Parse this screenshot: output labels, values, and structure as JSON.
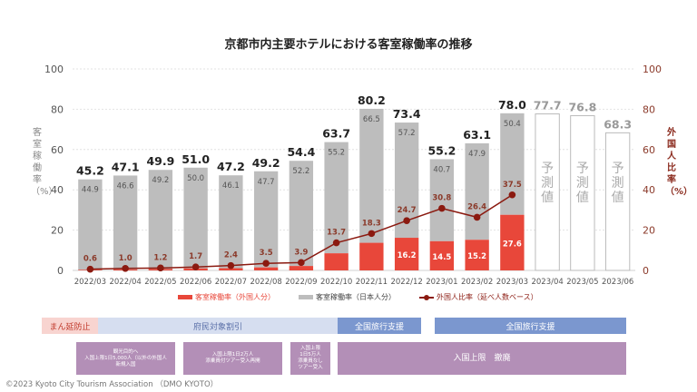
{
  "chart_data": {
    "type": "bar",
    "title": "京都市内主要ホテルにおける客室稼働率の推移",
    "ylabel": "客室稼働率（%）",
    "y2label": "外国人比率（%）",
    "ylim": [
      0,
      100
    ],
    "y2lim": [
      0,
      100
    ],
    "yticks": [
      "0",
      "20",
      "40",
      "60",
      "80",
      "100"
    ],
    "y2ticks": [
      "0",
      "20",
      "40",
      "60",
      "80",
      "100"
    ],
    "grid": true,
    "legend_position": "bottom",
    "categories": [
      "2022/03",
      "2022/04",
      "2022/05",
      "2022/06",
      "2022/07",
      "2022/08",
      "2022/09",
      "2022/10",
      "2022/11",
      "2022/12",
      "2023/01",
      "2023/02",
      "2023/03",
      "2023/04",
      "2023/05",
      "2023/06"
    ],
    "series": [
      {
        "name": "客室稼働率（外国人分）",
        "type": "stacked-bar",
        "color": "#e8473a",
        "values": [
          0.3,
          0.5,
          0.7,
          1.0,
          1.1,
          1.5,
          2.2,
          8.5,
          13.7,
          16.2,
          14.5,
          15.2,
          27.6,
          null,
          null,
          null
        ],
        "labels": [
          null,
          null,
          null,
          null,
          null,
          null,
          null,
          null,
          null,
          "16.2",
          "14.5",
          "15.2",
          "27.6",
          null,
          null,
          null
        ]
      },
      {
        "name": "客室稼働率（日本人分）",
        "type": "stacked-bar",
        "color": "#bdbdbd",
        "values": [
          44.9,
          46.6,
          49.2,
          50.0,
          46.1,
          47.7,
          52.2,
          55.2,
          66.5,
          57.2,
          40.7,
          47.9,
          50.4,
          null,
          null,
          null
        ],
        "labels": [
          "44.9",
          "46.6",
          "49.2",
          "50.0",
          "46.1",
          "47.7",
          "52.2",
          "55.2",
          "66.5",
          "57.2",
          "40.7",
          "47.9",
          "50.4",
          null,
          null,
          null
        ]
      },
      {
        "name": "外国人比率（延べ人数ベース）",
        "type": "line",
        "axis": "right",
        "color": "#8b1a10",
        "values": [
          0.6,
          1.0,
          1.2,
          1.7,
          2.4,
          3.5,
          3.9,
          13.7,
          18.3,
          24.7,
          30.8,
          26.4,
          37.5,
          null,
          null,
          null
        ],
        "labels": [
          "0.6",
          "1.0",
          "1.2",
          "1.7",
          "2.4",
          "3.5",
          "3.9",
          "13.7",
          "18.3",
          "24.7",
          "30.8",
          "26.4",
          "37.5",
          null,
          null,
          null
        ]
      }
    ],
    "totals": [
      45.2,
      47.1,
      49.9,
      51.0,
      47.2,
      49.2,
      54.4,
      63.7,
      80.2,
      73.4,
      55.2,
      63.1,
      78.0,
      77.7,
      76.8,
      68.3
    ],
    "total_labels": [
      "45.2",
      "47.1",
      "49.9",
      "51.0",
      "47.2",
      "49.2",
      "54.4",
      "63.7",
      "80.2",
      "73.4",
      "55.2",
      "63.1",
      "78.0",
      "77.7",
      "76.8",
      "68.3"
    ],
    "forecast": [
      false,
      false,
      false,
      false,
      false,
      false,
      false,
      false,
      false,
      false,
      false,
      false,
      false,
      true,
      true,
      true
    ],
    "forecast_label": "予測値"
  },
  "legend": {
    "foreign": "客室稼働率（外国人分）",
    "japanese": "客室稼働率（日本人分）",
    "ratio": "外国人比率（延べ人数ベース）"
  },
  "colors": {
    "foreign": "#e8473a",
    "japanese": "#bdbdbd",
    "line": "#8b1a10",
    "band_pink": "#f8d4d0",
    "band_lightblue": "#d6def0",
    "band_blue": "#7b97cf",
    "policy_purple": "#b38fb7"
  },
  "timeline": {
    "bands": [
      {
        "label": "まん延防止",
        "color": "#f8d4d0",
        "text_color": "#c0392b"
      },
      {
        "label": "府民対象割引",
        "color": "#d6def0",
        "text_color": "#5a6fa8"
      },
      {
        "label": "全国旅行支援",
        "color": "#7b97cf",
        "text_color": "#ffffff"
      },
      {
        "label": "全国旅行支援",
        "color": "#7b97cf",
        "text_color": "#ffffff"
      }
    ],
    "policies": [
      {
        "label": "観光目的へ\n入国上限1日5,000人（以外の外国人\n新規入国"
      },
      {
        "label": "入国上限1日2万人\n添乗員付ツアー受入再開"
      },
      {
        "label": "入国上限\n1日5万人\n添乗員なし\nツアー受入"
      },
      {
        "label": "入国上限　撤廃"
      }
    ]
  },
  "footer": {
    "copyright": "©2023 Kyoto City Tourism Association （DMO KYOTO）"
  }
}
